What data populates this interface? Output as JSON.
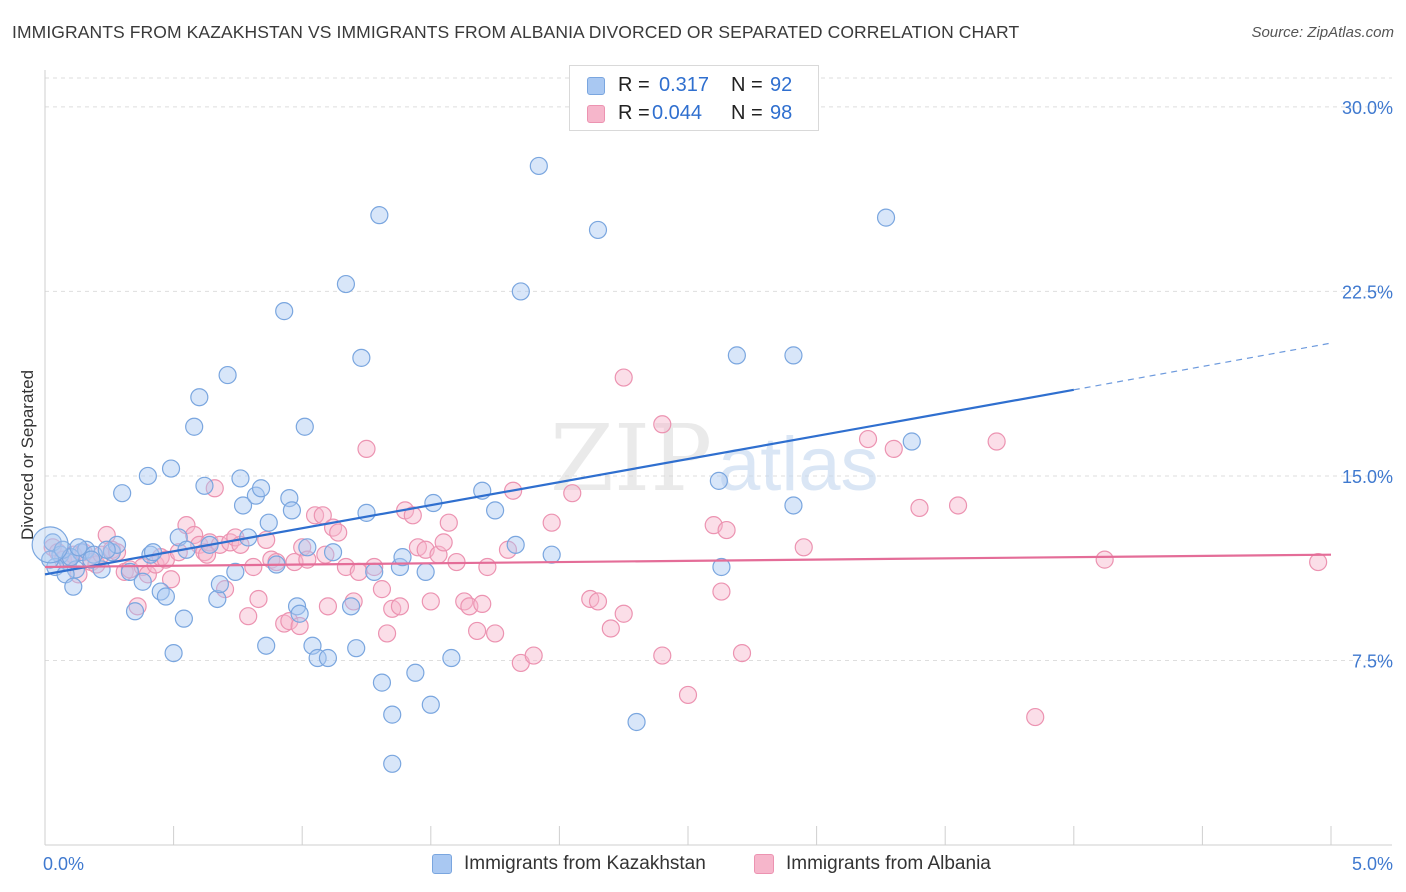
{
  "header": {
    "title": "IMMIGRANTS FROM KAZAKHSTAN VS IMMIGRANTS FROM ALBANIA DIVORCED OR SEPARATED CORRELATION CHART",
    "source": "Source: ZipAtlas.com"
  },
  "watermark": {
    "zip": "ZIP",
    "atlas": "atlas"
  },
  "legend": {
    "r_label": "R =",
    "n_label": "N =",
    "series": [
      {
        "r": "0.317",
        "n": "92"
      },
      {
        "r": "0.044",
        "n": "98"
      }
    ]
  },
  "colors": {
    "blue_fill": "#a9c8f2",
    "blue_stroke": "#7aa6df",
    "blue_line": "#2f6fcf",
    "pink_fill": "#f6b6cb",
    "pink_stroke": "#ec93b1",
    "pink_line": "#e46d98",
    "axis_label": "#3f79cf",
    "grid": "#dedede"
  },
  "chart_data": {
    "type": "scatter",
    "title": "IMMIGRANTS FROM KAZAKHSTAN VS IMMIGRANTS FROM ALBANIA DIVORCED OR SEPARATED CORRELATION CHART",
    "xlabel": "",
    "ylabel": "Divorced or Separated",
    "xlim": [
      0,
      5.0
    ],
    "ylim": [
      0,
      31.5
    ],
    "x_ticks": [
      "0.0%",
      "5.0%"
    ],
    "y_ticks": [
      {
        "value": 7.5,
        "label": "7.5%"
      },
      {
        "value": 15.0,
        "label": "15.0%"
      },
      {
        "value": 22.5,
        "label": "22.5%"
      },
      {
        "value": 30.0,
        "label": "30.0%"
      }
    ],
    "grid": true,
    "legend_position": "bottom",
    "series": [
      {
        "name": "Immigrants from Kazakhstan",
        "r": 0.317,
        "n": 92,
        "trend": {
          "x0": 0.0,
          "y0": 11.0,
          "x1": 4.0,
          "y1": 18.5,
          "dashed_to_x": 5.0,
          "dashed_to_y": 20.4
        },
        "points": [
          [
            0.03,
            12.3
          ],
          [
            0.06,
            11.8
          ],
          [
            0.09,
            11.5
          ],
          [
            0.12,
            11.2
          ],
          [
            0.04,
            11.3
          ],
          [
            0.08,
            11.0
          ],
          [
            0.11,
            10.5
          ],
          [
            0.14,
            11.9
          ],
          [
            0.16,
            12.0
          ],
          [
            0.19,
            11.8
          ],
          [
            0.22,
            11.2
          ],
          [
            0.26,
            11.9
          ],
          [
            0.28,
            12.2
          ],
          [
            0.3,
            14.3
          ],
          [
            0.33,
            11.1
          ],
          [
            0.35,
            9.5
          ],
          [
            0.38,
            10.7
          ],
          [
            0.4,
            15.0
          ],
          [
            0.41,
            11.8
          ],
          [
            0.42,
            11.9
          ],
          [
            0.45,
            10.3
          ],
          [
            0.47,
            10.1
          ],
          [
            0.49,
            15.3
          ],
          [
            0.5,
            7.8
          ],
          [
            0.52,
            12.5
          ],
          [
            0.54,
            9.2
          ],
          [
            0.55,
            12.0
          ],
          [
            0.58,
            17.0
          ],
          [
            0.6,
            18.2
          ],
          [
            0.62,
            14.6
          ],
          [
            0.64,
            12.2
          ],
          [
            0.67,
            10.0
          ],
          [
            0.68,
            10.6
          ],
          [
            0.71,
            19.1
          ],
          [
            0.74,
            11.1
          ],
          [
            0.76,
            14.9
          ],
          [
            0.77,
            13.8
          ],
          [
            0.79,
            12.5
          ],
          [
            0.82,
            14.2
          ],
          [
            0.84,
            14.5
          ],
          [
            0.86,
            8.1
          ],
          [
            0.87,
            13.1
          ],
          [
            0.9,
            11.4
          ],
          [
            0.93,
            21.7
          ],
          [
            0.95,
            14.1
          ],
          [
            0.96,
            13.6
          ],
          [
            0.98,
            9.7
          ],
          [
            0.99,
            9.4
          ],
          [
            1.01,
            17.0
          ],
          [
            1.02,
            12.1
          ],
          [
            1.04,
            8.1
          ],
          [
            1.06,
            7.6
          ],
          [
            1.1,
            7.6
          ],
          [
            1.12,
            11.9
          ],
          [
            1.17,
            22.8
          ],
          [
            1.19,
            9.7
          ],
          [
            1.21,
            8.0
          ],
          [
            1.23,
            19.8
          ],
          [
            1.25,
            13.5
          ],
          [
            1.28,
            11.1
          ],
          [
            1.3,
            25.6
          ],
          [
            1.31,
            6.6
          ],
          [
            1.35,
            5.3
          ],
          [
            1.35,
            3.3
          ],
          [
            1.38,
            11.3
          ],
          [
            1.39,
            11.7
          ],
          [
            1.44,
            7.0
          ],
          [
            1.48,
            11.1
          ],
          [
            1.5,
            5.7
          ],
          [
            1.51,
            13.9
          ],
          [
            1.58,
            7.6
          ],
          [
            1.7,
            14.4
          ],
          [
            1.75,
            13.6
          ],
          [
            1.83,
            12.2
          ],
          [
            1.85,
            22.5
          ],
          [
            1.92,
            27.6
          ],
          [
            1.97,
            11.8
          ],
          [
            2.15,
            25.0
          ],
          [
            2.3,
            5.0
          ],
          [
            2.62,
            14.8
          ],
          [
            2.63,
            11.3
          ],
          [
            2.69,
            19.9
          ],
          [
            2.91,
            13.8
          ],
          [
            2.91,
            19.9
          ],
          [
            3.27,
            25.5
          ],
          [
            3.37,
            16.4
          ],
          [
            0.02,
            11.6
          ],
          [
            0.07,
            12.0
          ],
          [
            0.1,
            11.7
          ],
          [
            0.13,
            12.1
          ],
          [
            0.18,
            11.6
          ],
          [
            0.24,
            12.0
          ]
        ]
      },
      {
        "name": "Immigrants from Albania",
        "r": 0.044,
        "n": 98,
        "trend": {
          "x0": 0.0,
          "y0": 11.3,
          "x1": 5.0,
          "y1": 11.8
        },
        "points": [
          [
            0.03,
            12.1
          ],
          [
            0.05,
            11.9
          ],
          [
            0.07,
            11.6
          ],
          [
            0.09,
            11.5
          ],
          [
            0.11,
            11.8
          ],
          [
            0.13,
            11.0
          ],
          [
            0.15,
            11.9
          ],
          [
            0.18,
            11.5
          ],
          [
            0.2,
            11.4
          ],
          [
            0.22,
            11.8
          ],
          [
            0.24,
            12.6
          ],
          [
            0.26,
            12.0
          ],
          [
            0.28,
            11.9
          ],
          [
            0.31,
            11.1
          ],
          [
            0.33,
            11.2
          ],
          [
            0.36,
            9.7
          ],
          [
            0.38,
            11.3
          ],
          [
            0.4,
            11.0
          ],
          [
            0.43,
            11.4
          ],
          [
            0.45,
            11.7
          ],
          [
            0.47,
            11.6
          ],
          [
            0.49,
            10.8
          ],
          [
            0.52,
            11.9
          ],
          [
            0.55,
            13.0
          ],
          [
            0.58,
            12.6
          ],
          [
            0.6,
            12.2
          ],
          [
            0.62,
            11.9
          ],
          [
            0.64,
            12.3
          ],
          [
            0.66,
            14.5
          ],
          [
            0.68,
            12.2
          ],
          [
            0.7,
            10.4
          ],
          [
            0.72,
            12.3
          ],
          [
            0.74,
            12.5
          ],
          [
            0.76,
            12.2
          ],
          [
            0.79,
            9.3
          ],
          [
            0.81,
            11.3
          ],
          [
            0.83,
            10.0
          ],
          [
            0.86,
            12.4
          ],
          [
            0.88,
            11.6
          ],
          [
            0.9,
            11.5
          ],
          [
            0.93,
            9.0
          ],
          [
            0.95,
            9.1
          ],
          [
            0.97,
            11.5
          ],
          [
            0.99,
            8.9
          ],
          [
            1.0,
            12.1
          ],
          [
            1.02,
            11.6
          ],
          [
            1.05,
            13.4
          ],
          [
            1.08,
            13.4
          ],
          [
            1.1,
            9.7
          ],
          [
            1.12,
            12.9
          ],
          [
            1.14,
            12.7
          ],
          [
            1.17,
            11.3
          ],
          [
            1.2,
            9.9
          ],
          [
            1.22,
            11.1
          ],
          [
            1.25,
            16.1
          ],
          [
            1.28,
            11.3
          ],
          [
            1.31,
            10.4
          ],
          [
            1.33,
            8.6
          ],
          [
            1.35,
            9.6
          ],
          [
            1.38,
            9.7
          ],
          [
            1.4,
            13.6
          ],
          [
            1.43,
            13.4
          ],
          [
            1.45,
            12.1
          ],
          [
            1.48,
            12.0
          ],
          [
            1.5,
            9.9
          ],
          [
            1.53,
            11.8
          ],
          [
            1.55,
            12.3
          ],
          [
            1.57,
            13.1
          ],
          [
            1.6,
            11.5
          ],
          [
            1.63,
            9.9
          ],
          [
            1.65,
            9.7
          ],
          [
            1.68,
            8.7
          ],
          [
            1.7,
            9.8
          ],
          [
            1.72,
            11.3
          ],
          [
            1.75,
            8.6
          ],
          [
            1.8,
            12.0
          ],
          [
            1.82,
            14.4
          ],
          [
            1.85,
            7.4
          ],
          [
            1.9,
            7.7
          ],
          [
            1.97,
            13.1
          ],
          [
            2.05,
            14.3
          ],
          [
            2.12,
            10.0
          ],
          [
            2.15,
            9.9
          ],
          [
            2.2,
            8.8
          ],
          [
            2.25,
            9.4
          ],
          [
            2.4,
            7.7
          ],
          [
            2.5,
            6.1
          ],
          [
            2.6,
            13.0
          ],
          [
            2.63,
            10.3
          ],
          [
            2.65,
            12.8
          ],
          [
            2.71,
            7.8
          ],
          [
            2.95,
            12.1
          ],
          [
            3.2,
            16.5
          ],
          [
            3.3,
            16.1
          ],
          [
            3.4,
            13.7
          ],
          [
            3.55,
            13.8
          ],
          [
            3.7,
            16.4
          ],
          [
            3.85,
            5.2
          ]
        ],
        "extra_points": [
          [
            0.63,
            11.8
          ],
          [
            1.09,
            11.8
          ],
          [
            4.12,
            11.6
          ],
          [
            4.95,
            11.5
          ],
          [
            2.25,
            19.0
          ],
          [
            2.4,
            17.1
          ]
        ]
      }
    ]
  },
  "bottom_legend": [
    {
      "label": "Immigrants from Kazakhstan"
    },
    {
      "label": "Immigrants from Albania"
    }
  ]
}
